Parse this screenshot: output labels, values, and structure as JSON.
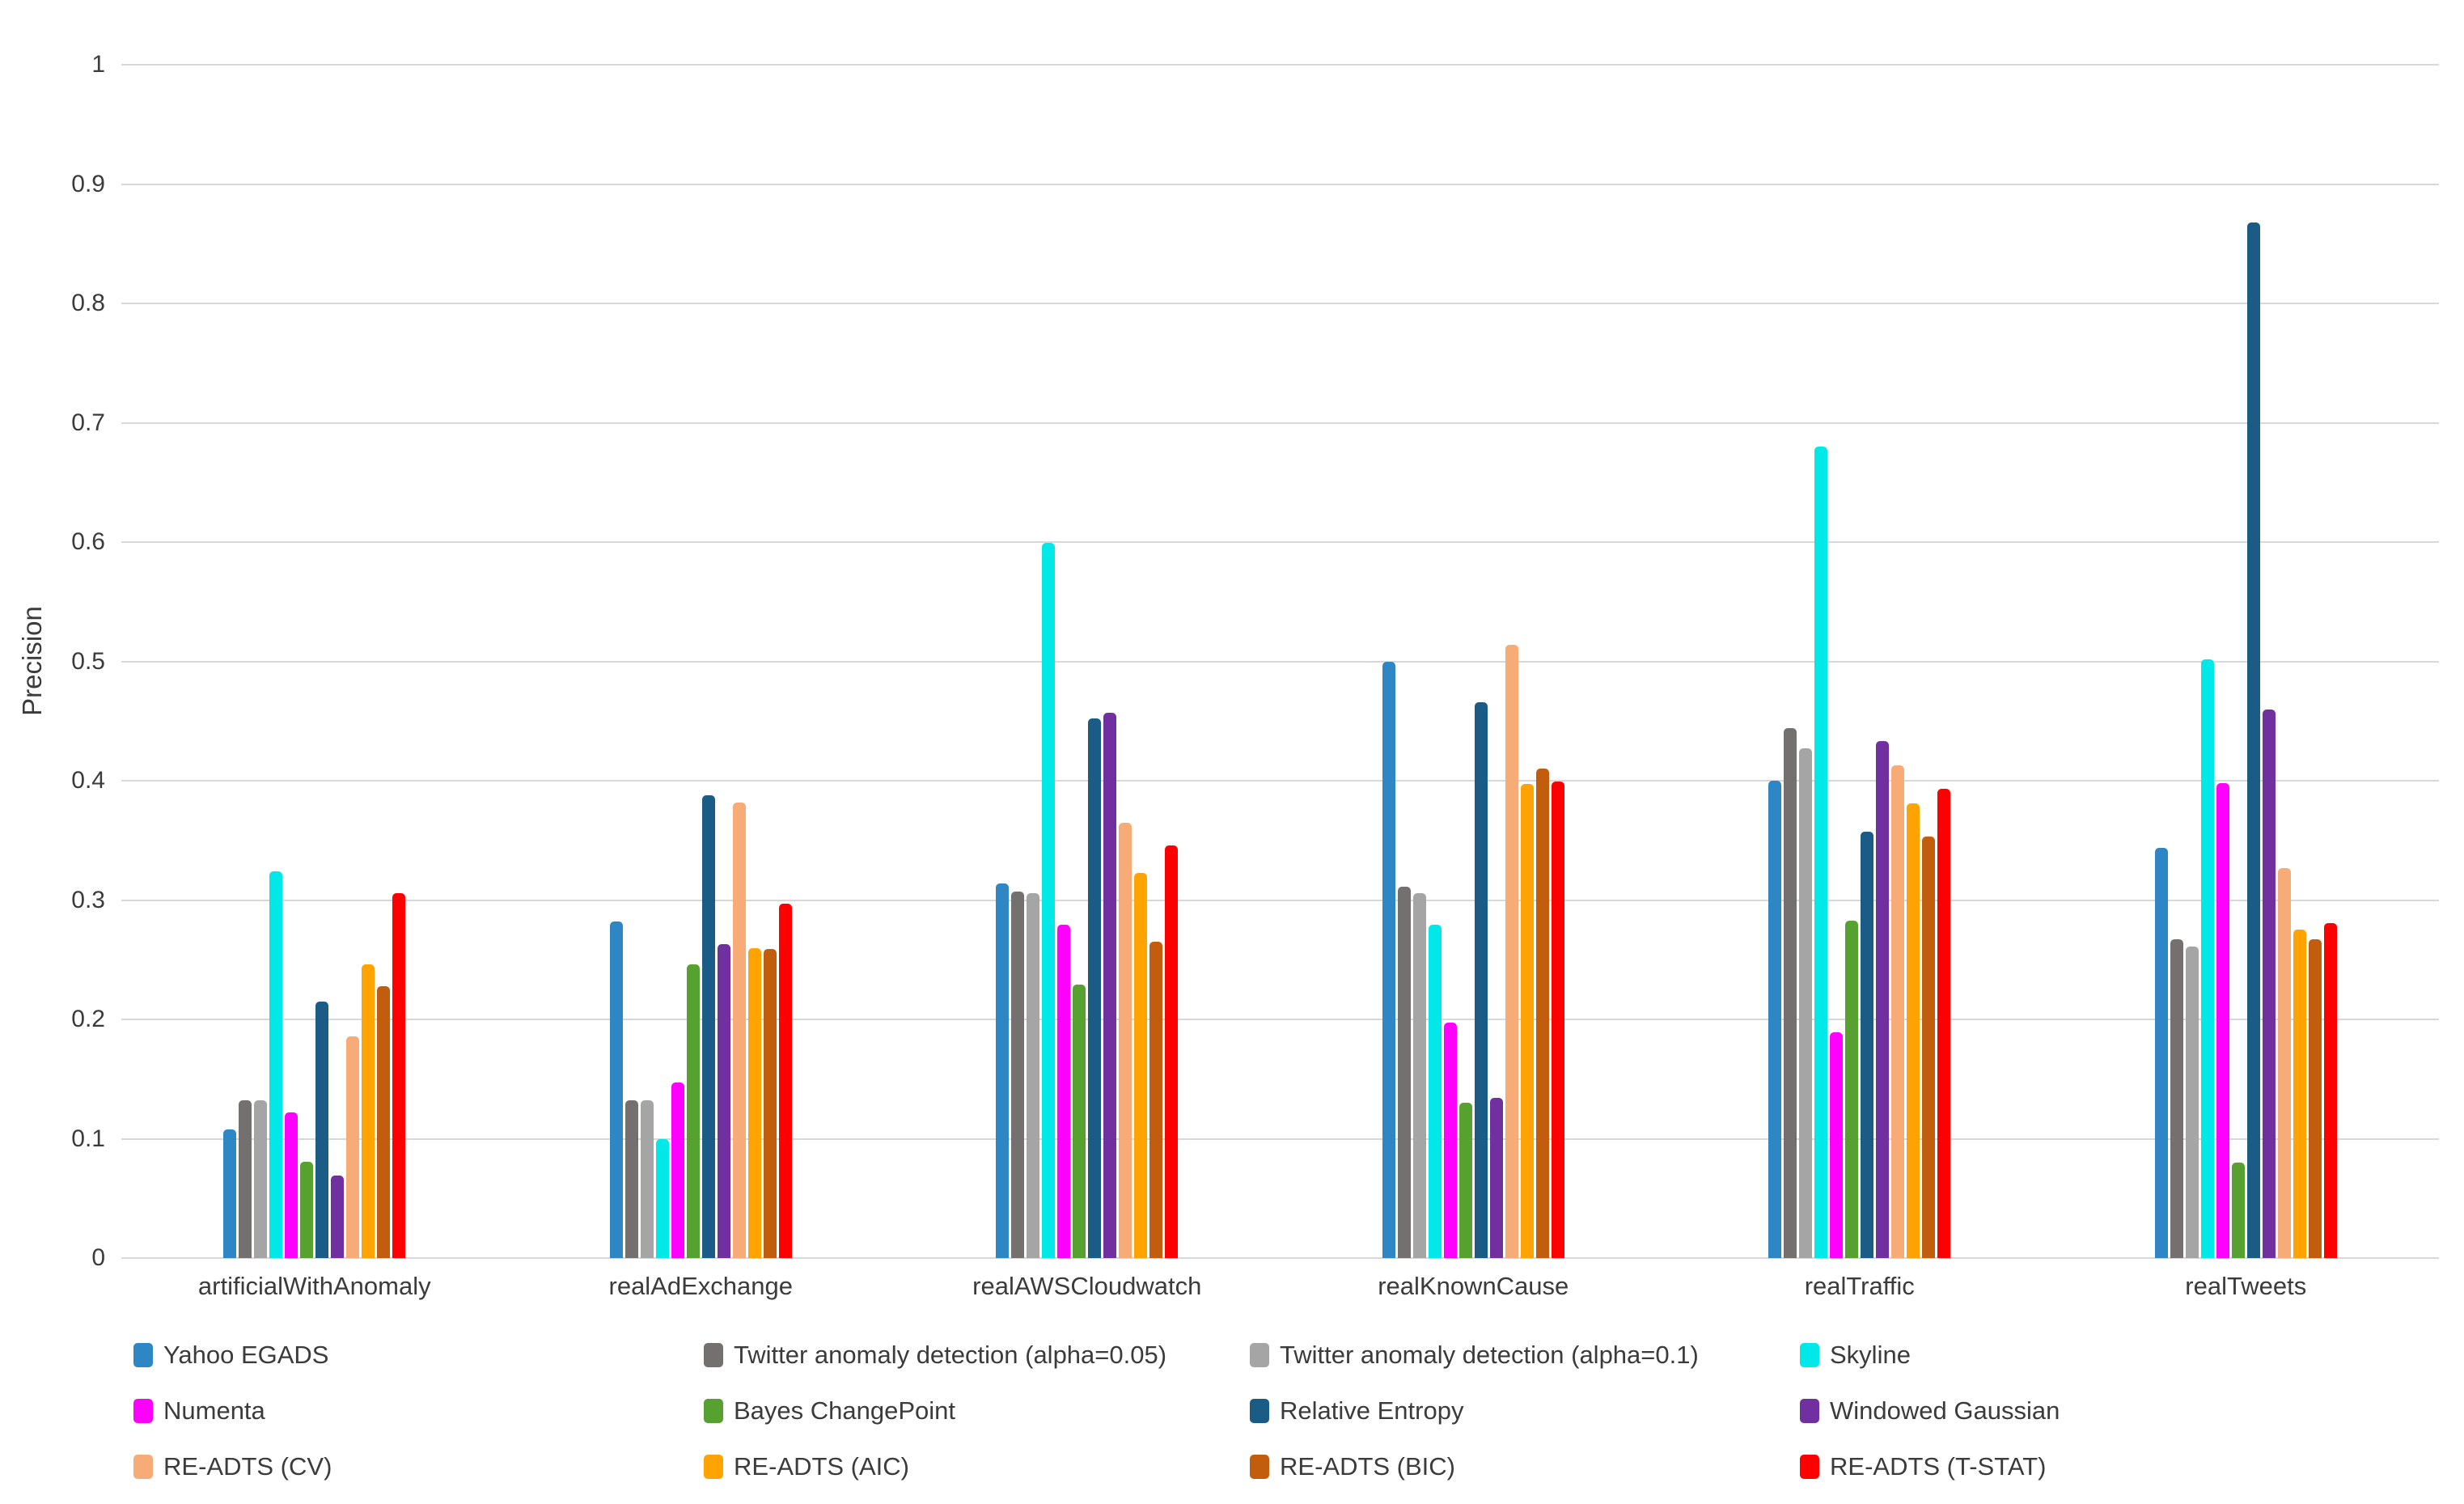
{
  "page": {
    "background": "#FFFFFF"
  },
  "chart_data": {
    "type": "bar",
    "title": "",
    "xlabel": "",
    "ylabel": "Precision",
    "ylim": [
      0,
      1
    ],
    "ytick_labels": [
      "0",
      "0.1",
      "0.2",
      "0.3",
      "0.4",
      "0.5",
      "0.6",
      "0.7",
      "0.8",
      "0.9",
      "1"
    ],
    "grid": true,
    "legend_position": "bottom",
    "legend_columns": 4,
    "categories": [
      "artificialWithAnomaly",
      "realAdExchange",
      "realAWSCloudwatch",
      "realKnownCause",
      "realTraffic",
      "realTweets"
    ],
    "series": [
      {
        "name": "Yahoo EGADS",
        "color": "#2E86C5",
        "values": [
          0.108,
          0.282,
          0.314,
          0.5,
          0.4,
          0.344
        ]
      },
      {
        "name": "Twitter anomaly detection (alpha=0.05)",
        "color": "#747070",
        "values": [
          0.132,
          0.132,
          0.307,
          0.311,
          0.444,
          0.267
        ]
      },
      {
        "name": "Twitter anomaly detection (alpha=0.1)",
        "color": "#A5A5A5",
        "values": [
          0.132,
          0.132,
          0.306,
          0.306,
          0.427,
          0.261
        ]
      },
      {
        "name": "Skyline",
        "color": "#00E8E8",
        "values": [
          0.324,
          0.1,
          0.599,
          0.279,
          0.68,
          0.502
        ]
      },
      {
        "name": "Numenta",
        "color": "#FF00FF",
        "values": [
          0.122,
          0.147,
          0.279,
          0.197,
          0.189,
          0.398
        ]
      },
      {
        "name": "Bayes ChangePoint",
        "color": "#56A12F",
        "values": [
          0.081,
          0.246,
          0.229,
          0.13,
          0.283,
          0.08
        ]
      },
      {
        "name": "Relative Entropy",
        "color": "#1A5C85",
        "values": [
          0.215,
          0.388,
          0.452,
          0.466,
          0.357,
          0.868
        ]
      },
      {
        "name": "Windowed Gaussian",
        "color": "#7030A0",
        "values": [
          0.069,
          0.263,
          0.457,
          0.134,
          0.433,
          0.46
        ]
      },
      {
        "name": "RE-ADTS (CV)",
        "color": "#F7AC77",
        "values": [
          0.186,
          0.382,
          0.365,
          0.514,
          0.413,
          0.327
        ]
      },
      {
        "name": "RE-ADTS (AIC)",
        "color": "#FFA303",
        "values": [
          0.246,
          0.26,
          0.323,
          0.397,
          0.381,
          0.275
        ]
      },
      {
        "name": "RE-ADTS (BIC)",
        "color": "#C25D0E",
        "values": [
          0.228,
          0.259,
          0.265,
          0.41,
          0.353,
          0.267
        ]
      },
      {
        "name": "RE-ADTS (T-STAT)",
        "color": "#FE0000",
        "values": [
          0.306,
          0.297,
          0.346,
          0.399,
          0.393,
          0.281
        ]
      }
    ]
  }
}
